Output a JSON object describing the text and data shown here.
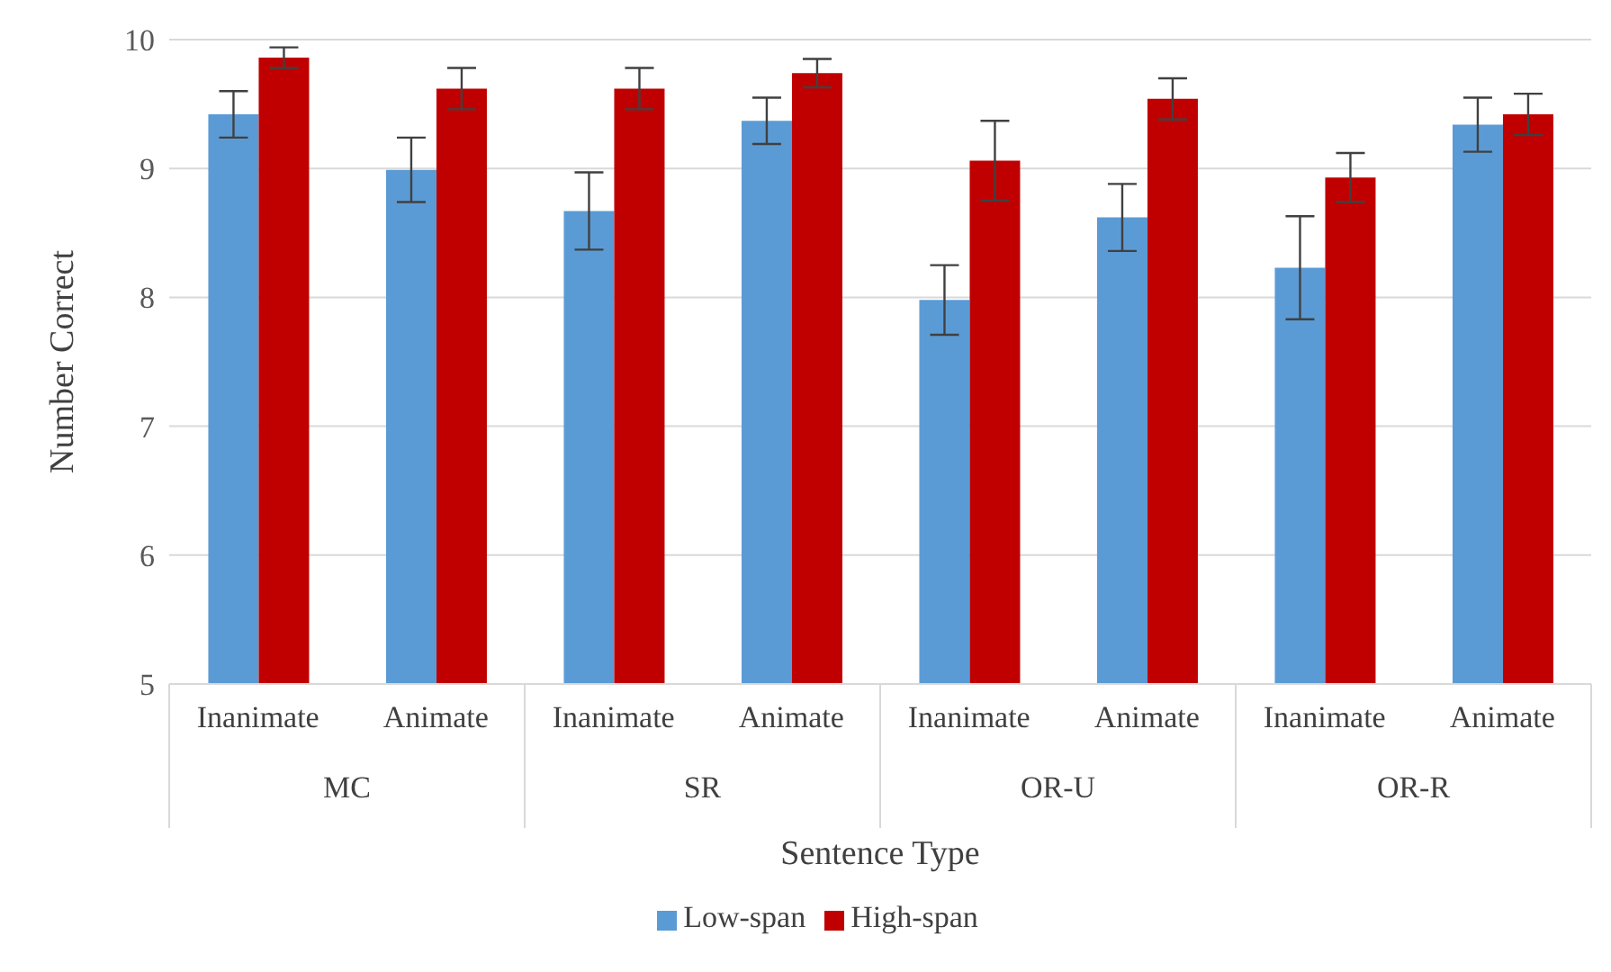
{
  "chart_data": {
    "type": "bar",
    "xlabel": "Sentence Type",
    "ylabel": "Number Correct",
    "categories": [
      "Inanimate",
      "Animate",
      "Inanimate",
      "Animate",
      "Inanimate",
      "Animate",
      "Inanimate",
      "Animate"
    ],
    "annotations": [
      "MC",
      "SR",
      "OR-U",
      "OR-R"
    ],
    "series": [
      {
        "name": "Low-span",
        "color": "#5b9bd5",
        "values": [
          9.42,
          8.99,
          8.67,
          9.37,
          7.98,
          8.62,
          8.23,
          9.34
        ],
        "errors": [
          0.18,
          0.25,
          0.3,
          0.18,
          0.27,
          0.26,
          0.4,
          0.21
        ]
      },
      {
        "name": "High-span",
        "color": "#c00000",
        "values": [
          9.86,
          9.62,
          9.62,
          9.74,
          9.06,
          9.54,
          8.93,
          9.42
        ],
        "errors": [
          0.08,
          0.16,
          0.16,
          0.11,
          0.31,
          0.16,
          0.19,
          0.16
        ]
      }
    ],
    "ylim": [
      5,
      10
    ],
    "yticks": [
      5,
      6,
      7,
      8,
      9,
      10
    ],
    "grid": "y",
    "legend": "bottom"
  }
}
